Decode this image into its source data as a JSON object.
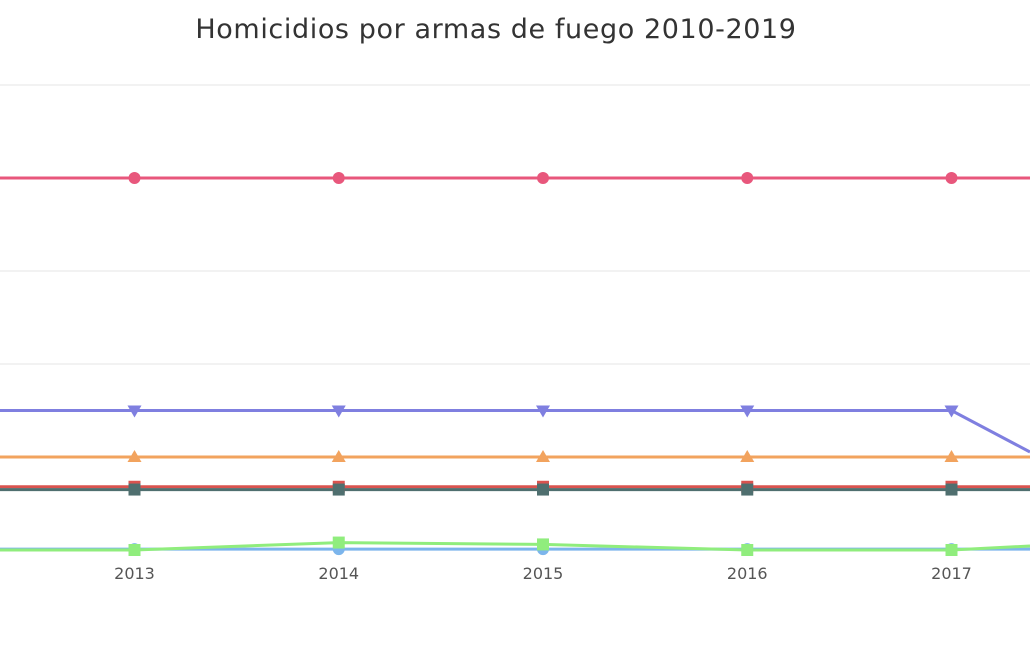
{
  "title": "Homicidios por armas de fuego 2010-2019",
  "chart_data": {
    "type": "line",
    "title": "Homicidios por armas de fuego 2010-2019",
    "xlabel": "",
    "ylabel": "",
    "categories": [
      "2013",
      "2014",
      "2015",
      "2016",
      "2017"
    ],
    "grid": true,
    "ylim": [
      0,
      500
    ],
    "yticks": [
      200,
      300,
      500
    ],
    "series": [
      {
        "color": "#e8577c",
        "marker": "circle",
        "values": [
          400,
          400,
          400,
          400,
          400
        ]
      },
      {
        "color": "#7f7fe0",
        "marker": "triangle-down",
        "values": [
          150,
          150,
          150,
          150,
          150
        ]
      },
      {
        "color": "#f2a35e",
        "marker": "triangle-up",
        "values": [
          100,
          100,
          100,
          100,
          100
        ]
      },
      {
        "color": "#d9534f",
        "marker": "square",
        "values": [
          68,
          68,
          68,
          68,
          68
        ]
      },
      {
        "color": "#4f6f6f",
        "marker": "square",
        "values": [
          65,
          65,
          65,
          65,
          65
        ]
      },
      {
        "color": "#7cb5ec",
        "marker": "circle",
        "values": [
          1,
          1,
          1,
          1,
          1
        ]
      },
      {
        "color": "#90ed7d",
        "marker": "square",
        "values": [
          0,
          8,
          6,
          0,
          0
        ]
      }
    ]
  }
}
